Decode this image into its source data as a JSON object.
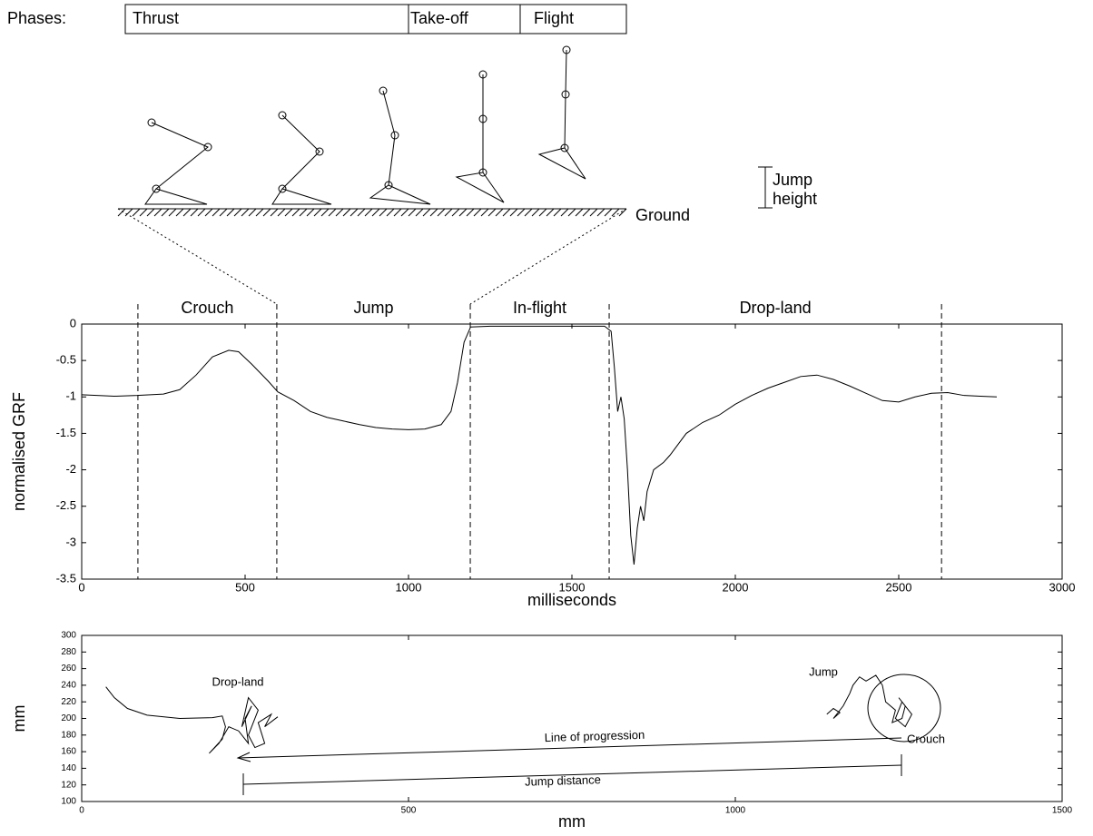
{
  "diagram": {
    "phases_label": "Phases:",
    "phases": [
      "Thrust",
      "Take-off",
      "Flight"
    ],
    "ground": "Ground",
    "jump_height": [
      "Jump",
      "height"
    ]
  },
  "chart_data": [
    {
      "type": "line",
      "xlabel": "milliseconds",
      "ylabel": "normalised GRF",
      "xlim": [
        0,
        3000
      ],
      "ylim": [
        -3.5,
        0
      ],
      "xticks": [
        0,
        500,
        1000,
        1500,
        2000,
        2500,
        3000
      ],
      "yticks": [
        0,
        -0.5,
        -1,
        -1.5,
        -2,
        -2.5,
        -3,
        -3.5
      ],
      "phase_labels": [
        "Crouch",
        "Jump",
        "In-flight",
        "Drop-land"
      ],
      "phase_bounds": [
        172,
        597,
        1189,
        1614,
        2631
      ],
      "color": "#000000",
      "x": [
        0,
        100,
        170,
        250,
        300,
        350,
        400,
        450,
        480,
        520,
        570,
        600,
        650,
        700,
        750,
        800,
        850,
        900,
        950,
        1000,
        1050,
        1100,
        1130,
        1150,
        1170,
        1190,
        1250,
        1300,
        1400,
        1500,
        1600,
        1620,
        1630,
        1640,
        1650,
        1660,
        1670,
        1680,
        1690,
        1700,
        1710,
        1720,
        1730,
        1750,
        1780,
        1800,
        1850,
        1900,
        1950,
        2000,
        2050,
        2100,
        2150,
        2200,
        2250,
        2300,
        2350,
        2400,
        2450,
        2500,
        2550,
        2600,
        2650,
        2700,
        2750,
        2800
      ],
      "values": [
        -0.97,
        -0.99,
        -0.98,
        -0.96,
        -0.9,
        -0.7,
        -0.45,
        -0.36,
        -0.38,
        -0.55,
        -0.78,
        -0.93,
        -1.05,
        -1.2,
        -1.28,
        -1.33,
        -1.38,
        -1.42,
        -1.44,
        -1.45,
        -1.44,
        -1.38,
        -1.2,
        -0.8,
        -0.25,
        -0.04,
        -0.03,
        -0.03,
        -0.03,
        -0.03,
        -0.03,
        -0.1,
        -0.6,
        -1.2,
        -1.0,
        -1.3,
        -2.0,
        -2.9,
        -3.3,
        -2.8,
        -2.5,
        -2.7,
        -2.3,
        -2.0,
        -1.9,
        -1.8,
        -1.5,
        -1.35,
        -1.25,
        -1.1,
        -0.98,
        -0.88,
        -0.8,
        -0.72,
        -0.7,
        -0.76,
        -0.85,
        -0.95,
        -1.05,
        -1.07,
        -1.0,
        -0.95,
        -0.94,
        -0.98,
        -0.99,
        -1.0
      ]
    },
    {
      "type": "line",
      "xlabel": "mm",
      "ylabel": "mm",
      "xlim": [
        0,
        1500
      ],
      "ylim": [
        100,
        300
      ],
      "xticks": [
        0,
        500,
        1000,
        1500
      ],
      "yticks": [
        100,
        120,
        140,
        160,
        180,
        200,
        220,
        240,
        260,
        280,
        300
      ],
      "annotations": [
        "Drop-land",
        "Jump",
        "Crouch",
        "Line of progression",
        "Jump distance"
      ],
      "color": "#000000",
      "x": [
        37,
        50,
        70,
        100,
        150,
        200,
        215,
        220,
        215,
        195,
        210,
        225,
        240,
        255,
        250,
        260,
        245,
        255,
        270,
        255,
        265,
        280,
        270,
        290,
        280,
        300,
        null,
        1140,
        1150,
        1160,
        1150,
        1165,
        1175,
        1180,
        1190,
        1200,
        1215,
        1225,
        1230,
        1245,
        1240,
        1255,
        1260,
        1250,
        1270,
        1260,
        1245,
        1255
      ],
      "values": [
        238,
        225,
        212,
        204,
        200,
        201,
        203,
        190,
        175,
        158,
        170,
        190,
        185,
        170,
        200,
        215,
        190,
        225,
        210,
        180,
        165,
        170,
        195,
        205,
        190,
        202,
        null,
        205,
        212,
        207,
        200,
        215,
        230,
        240,
        250,
        245,
        252,
        240,
        220,
        210,
        195,
        200,
        215,
        225,
        205,
        190,
        200,
        220
      ]
    }
  ]
}
